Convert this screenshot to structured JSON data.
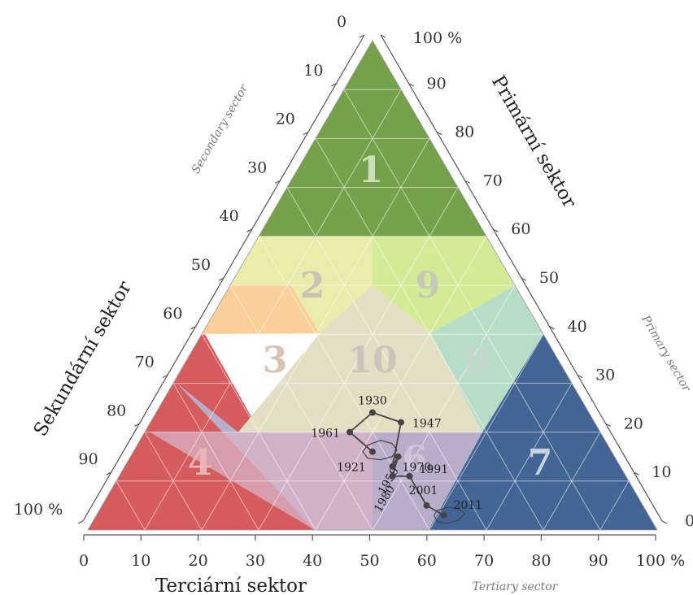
{
  "axes": {
    "primary": {
      "title": "Primární sektor",
      "subtitle": "Primary sector"
    },
    "secondary": {
      "title": "Sekundární sektor",
      "subtitle": "Secondary sector"
    },
    "tertiary": {
      "title": "Terciární sektor",
      "subtitle": "Tertiary sector"
    },
    "ticks": [
      "0",
      "10",
      "20",
      "30",
      "40",
      "50",
      "60",
      "70",
      "80",
      "90",
      "100 %"
    ]
  },
  "regions": [
    {
      "id": "1",
      "label": "1",
      "color": "#75a14a"
    },
    {
      "id": "2",
      "label": "2",
      "color": "#e9ecaa"
    },
    {
      "id": "3",
      "label": "3",
      "color": "#fbcf9a"
    },
    {
      "id": "4",
      "label": "4",
      "color": "#d65b5d"
    },
    {
      "id": "6",
      "label": "6",
      "color": "#b8aec9"
    },
    {
      "id": "7",
      "label": "7",
      "color": "#436595"
    },
    {
      "id": "8",
      "label": "8",
      "color": "#b7ddc6"
    },
    {
      "id": "9",
      "label": "9",
      "color": "#d3eb95"
    },
    {
      "id": "10",
      "label": "10",
      "color": "#e3dfc4"
    }
  ],
  "chart_data": {
    "type": "ternary",
    "components": [
      "Primary",
      "Secondary",
      "Tertiary"
    ],
    "series": [
      {
        "points": [
          {
            "year": "1921",
            "primary": 16,
            "secondary": 42,
            "tertiary": 42
          },
          {
            "year": "1930",
            "primary": 24,
            "secondary": 38,
            "tertiary": 38
          },
          {
            "year": "1947",
            "primary": 22,
            "secondary": 34,
            "tertiary": 44
          },
          {
            "year": "1950",
            "primary": 15,
            "secondary": 38,
            "tertiary": 47
          },
          {
            "year": "1961",
            "primary": 20,
            "secondary": 44,
            "tertiary": 36
          },
          {
            "year": "1970",
            "primary": 13,
            "secondary": 40,
            "tertiary": 47
          },
          {
            "year": "1980",
            "primary": 11,
            "secondary": 41,
            "tertiary": 48
          },
          {
            "year": "1991",
            "primary": 11,
            "secondary": 38,
            "tertiary": 51
          },
          {
            "year": "2001",
            "primary": 5,
            "secondary": 38,
            "tertiary": 57
          },
          {
            "year": "2011",
            "primary": 3,
            "secondary": 36,
            "tertiary": 61
          }
        ]
      }
    ]
  }
}
